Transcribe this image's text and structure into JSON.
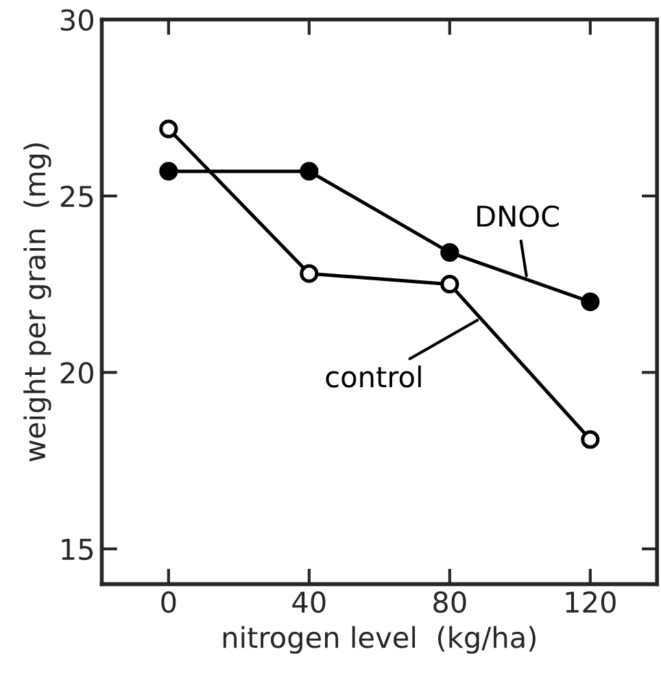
{
  "chart_data": {
    "type": "line",
    "xlabel": "nitrogen level  (kg/ha)",
    "ylabel": "weight per grain  (mg)",
    "x": [
      0,
      40,
      80,
      120
    ],
    "series": [
      {
        "name": "DNOC",
        "color": "#000000",
        "values": [
          25.7,
          25.7,
          23.4,
          22.0
        ]
      },
      {
        "name": "control",
        "color": "#000000",
        "values": [
          26.9,
          22.8,
          22.5,
          18.1
        ]
      }
    ],
    "xlim": [
      -19,
      139
    ],
    "ylim": [
      14,
      30
    ],
    "xticks": [
      0,
      40,
      80,
      120
    ],
    "yticks": [
      15,
      20,
      25,
      30
    ],
    "marker": "circle",
    "line_style": "solid",
    "grid": false
  }
}
